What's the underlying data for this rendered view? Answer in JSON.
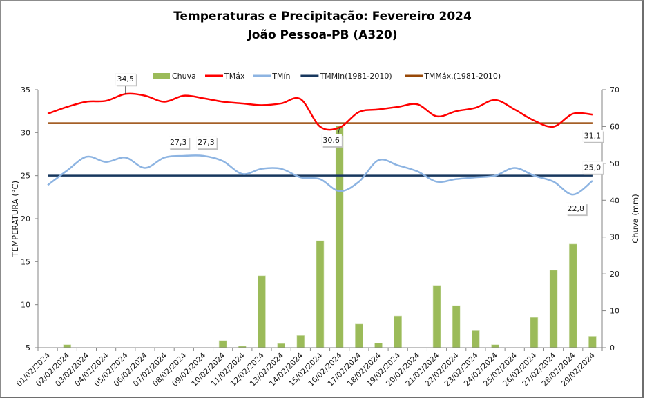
{
  "chart_data": {
    "type": "bar",
    "title": "Temperaturas e Precipitação: Fevereiro 2024",
    "subtitle": "João Pessoa-PB (A320)",
    "xlabel": "",
    "ylabel": "TEMPERATURA (°C)",
    "y2label": "Chuva (mm)",
    "ylim": [
      5,
      35
    ],
    "y2lim": [
      0,
      70
    ],
    "yticks": [
      "5",
      "10",
      "15",
      "20",
      "25",
      "30",
      "35"
    ],
    "y2ticks": [
      "0",
      "10",
      "20",
      "30",
      "40",
      "50",
      "60",
      "70"
    ],
    "grid": false,
    "legend_position": "top",
    "categories": [
      "01/02/2024",
      "02/02/2024",
      "03/02/2024",
      "04/02/2024",
      "05/02/2024",
      "06/02/2024",
      "07/02/2024",
      "08/02/2024",
      "09/02/2024",
      "10/02/2024",
      "11/02/2024",
      "12/02/2024",
      "13/02/2024",
      "14/02/2024",
      "15/02/2024",
      "16/02/2024",
      "17/02/2024",
      "18/02/2024",
      "19/02/2024",
      "20/02/2024",
      "21/02/2024",
      "22/02/2024",
      "23/02/2024",
      "24/02/2024",
      "25/02/2024",
      "26/02/2024",
      "27/02/2024",
      "28/02/2024",
      "29/02/2024"
    ],
    "series": [
      {
        "name": "Chuva",
        "type": "bar",
        "axis": "right",
        "color": "#9bbb59",
        "values": [
          0,
          0.8,
          0,
          0,
          0,
          0,
          0,
          0,
          0,
          1.9,
          0.4,
          19.5,
          1.1,
          3.3,
          29.0,
          60.2,
          6.4,
          1.2,
          8.6,
          0,
          16.9,
          11.4,
          4.6,
          0.8,
          0,
          8.2,
          21.0,
          28.1,
          3.1
        ]
      },
      {
        "name": "TMáx",
        "type": "line",
        "axis": "left",
        "color": "#ff0000",
        "values": [
          32.2,
          33.0,
          33.6,
          33.7,
          34.5,
          34.3,
          33.6,
          34.3,
          34.0,
          33.6,
          33.4,
          33.2,
          33.4,
          33.9,
          30.7,
          30.6,
          32.4,
          32.7,
          33.0,
          33.3,
          31.9,
          32.5,
          32.9,
          33.8,
          32.7,
          31.4,
          30.7,
          32.2,
          32.1
        ]
      },
      {
        "name": "TMín",
        "type": "line",
        "axis": "left",
        "color": "#8db4e2",
        "values": [
          23.9,
          25.6,
          27.2,
          26.6,
          27.1,
          25.9,
          27.1,
          27.3,
          27.3,
          26.7,
          25.2,
          25.8,
          25.8,
          24.8,
          24.6,
          23.2,
          24.3,
          26.8,
          26.2,
          25.5,
          24.3,
          24.6,
          24.8,
          25.0,
          25.9,
          25.0,
          24.3,
          22.8,
          24.4
        ]
      },
      {
        "name": "TMMin(1981-2010)",
        "type": "line",
        "axis": "left",
        "color": "#17375e",
        "constant": 25.0
      },
      {
        "name": "TMMáx.(1981-2010)",
        "type": "line",
        "axis": "left",
        "color": "#984807",
        "constant": 31.1
      }
    ],
    "annotations": [
      {
        "series": "TMáx",
        "category": "05/02/2024",
        "text": "34,5"
      },
      {
        "series": "TMín",
        "category": "08/02/2024",
        "text": "27,3"
      },
      {
        "series": "TMín",
        "category": "09/02/2024",
        "text": "27,3"
      },
      {
        "series": "TMáx",
        "category": "16/02/2024",
        "text": "30,6"
      },
      {
        "series": "TMMáx.(1981-2010)",
        "category": "29/02/2024",
        "text": "31,1"
      },
      {
        "series": "TMMin(1981-2010)",
        "category": "29/02/2024",
        "text": "25,0"
      },
      {
        "series": "TMín",
        "category": "28/02/2024",
        "text": "22,8"
      }
    ]
  }
}
